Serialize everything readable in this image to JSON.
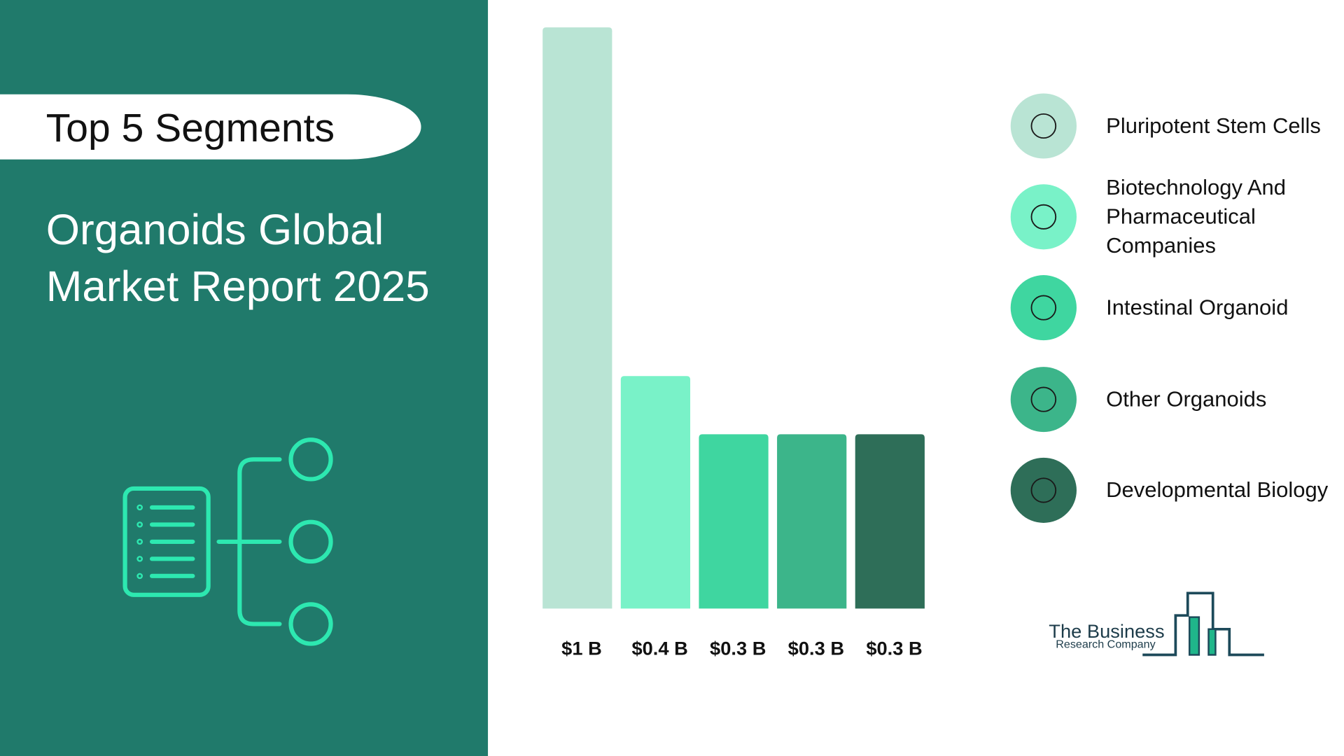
{
  "chart_data": {
    "type": "bar",
    "badge": "Top 5 Segments",
    "title_lines": [
      "Organoids Global",
      "Market Report 2025"
    ],
    "categories": [
      "Pluripotent Stem Cells",
      "Biotechnology And Pharmaceutical Companies",
      "Intestinal Organoid",
      "Other Organoids",
      "Developmental Biology"
    ],
    "values": [
      1,
      0.4,
      0.3,
      0.3,
      0.3
    ],
    "value_labels": [
      "$1 B",
      "$0.4 B",
      "$0.3 B",
      "$0.3 B",
      "$0.3 B"
    ],
    "colors": [
      "#b9e4d4",
      "#79f2c8",
      "#3fd6a0",
      "#3cb58a",
      "#2e6e58"
    ],
    "logo": [
      "The Business",
      "Research Company"
    ]
  }
}
